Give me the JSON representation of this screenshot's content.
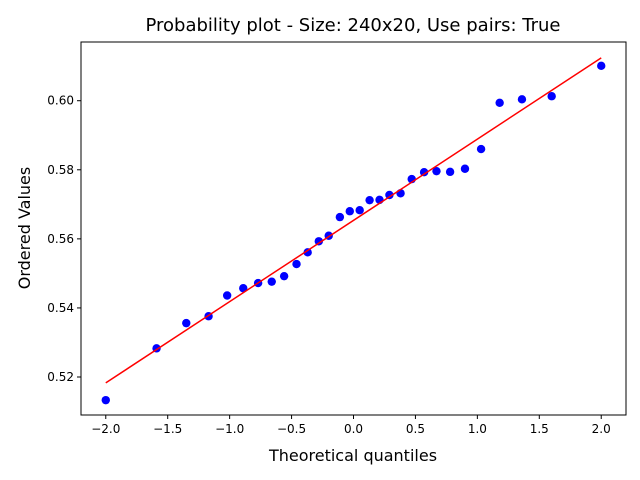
{
  "chart_data": {
    "type": "scatter",
    "title": "Probability plot - Size: 240x20, Use pairs: True",
    "xlabel": "Theoretical quantiles",
    "ylabel": "Ordered Values",
    "xlim": [
      -2.2,
      2.2
    ],
    "ylim": [
      0.509,
      0.617
    ],
    "xticks": [
      {
        "value": -2.0,
        "label": "−2.0"
      },
      {
        "value": -1.5,
        "label": "−1.5"
      },
      {
        "value": -1.0,
        "label": "−1.0"
      },
      {
        "value": -0.5,
        "label": "−0.5"
      },
      {
        "value": 0.0,
        "label": "0.0"
      },
      {
        "value": 0.5,
        "label": "0.5"
      },
      {
        "value": 1.0,
        "label": "1.0"
      },
      {
        "value": 1.5,
        "label": "1.5"
      },
      {
        "value": 2.0,
        "label": "2.0"
      }
    ],
    "yticks": [
      {
        "value": 0.52,
        "label": "0.52"
      },
      {
        "value": 0.54,
        "label": "0.54"
      },
      {
        "value": 0.56,
        "label": "0.56"
      },
      {
        "value": 0.58,
        "label": "0.58"
      },
      {
        "value": 0.6,
        "label": "0.60"
      }
    ],
    "grid": false,
    "series": [
      {
        "marker_color": "#0000ff",
        "points": [
          {
            "x": -2.0,
            "y": 0.5133
          },
          {
            "x": -1.59,
            "y": 0.5283
          },
          {
            "x": -1.35,
            "y": 0.5356
          },
          {
            "x": -1.17,
            "y": 0.5376
          },
          {
            "x": -1.02,
            "y": 0.5436
          },
          {
            "x": -0.89,
            "y": 0.5457
          },
          {
            "x": -0.77,
            "y": 0.5472
          },
          {
            "x": -0.66,
            "y": 0.5476
          },
          {
            "x": -0.56,
            "y": 0.5492
          },
          {
            "x": -0.46,
            "y": 0.5527
          },
          {
            "x": -0.37,
            "y": 0.5561
          },
          {
            "x": -0.28,
            "y": 0.5593
          },
          {
            "x": -0.2,
            "y": 0.5609
          },
          {
            "x": -0.11,
            "y": 0.5663
          },
          {
            "x": -0.03,
            "y": 0.568
          },
          {
            "x": 0.05,
            "y": 0.5683
          },
          {
            "x": 0.13,
            "y": 0.5712
          },
          {
            "x": 0.21,
            "y": 0.5713
          },
          {
            "x": 0.29,
            "y": 0.5727
          },
          {
            "x": 0.38,
            "y": 0.5732
          },
          {
            "x": 0.47,
            "y": 0.5773
          },
          {
            "x": 0.57,
            "y": 0.5793
          },
          {
            "x": 0.67,
            "y": 0.5796
          },
          {
            "x": 0.78,
            "y": 0.5794
          },
          {
            "x": 0.9,
            "y": 0.5803
          },
          {
            "x": 1.03,
            "y": 0.586
          },
          {
            "x": 1.18,
            "y": 0.5994
          },
          {
            "x": 1.36,
            "y": 0.6004
          },
          {
            "x": 1.6,
            "y": 0.6013
          },
          {
            "x": 2.0,
            "y": 0.6101
          }
        ]
      }
    ],
    "fit_line": {
      "color": "#ff0000",
      "x": [
        -2.0,
        2.0
      ],
      "y": [
        0.5183,
        0.6124
      ]
    }
  }
}
